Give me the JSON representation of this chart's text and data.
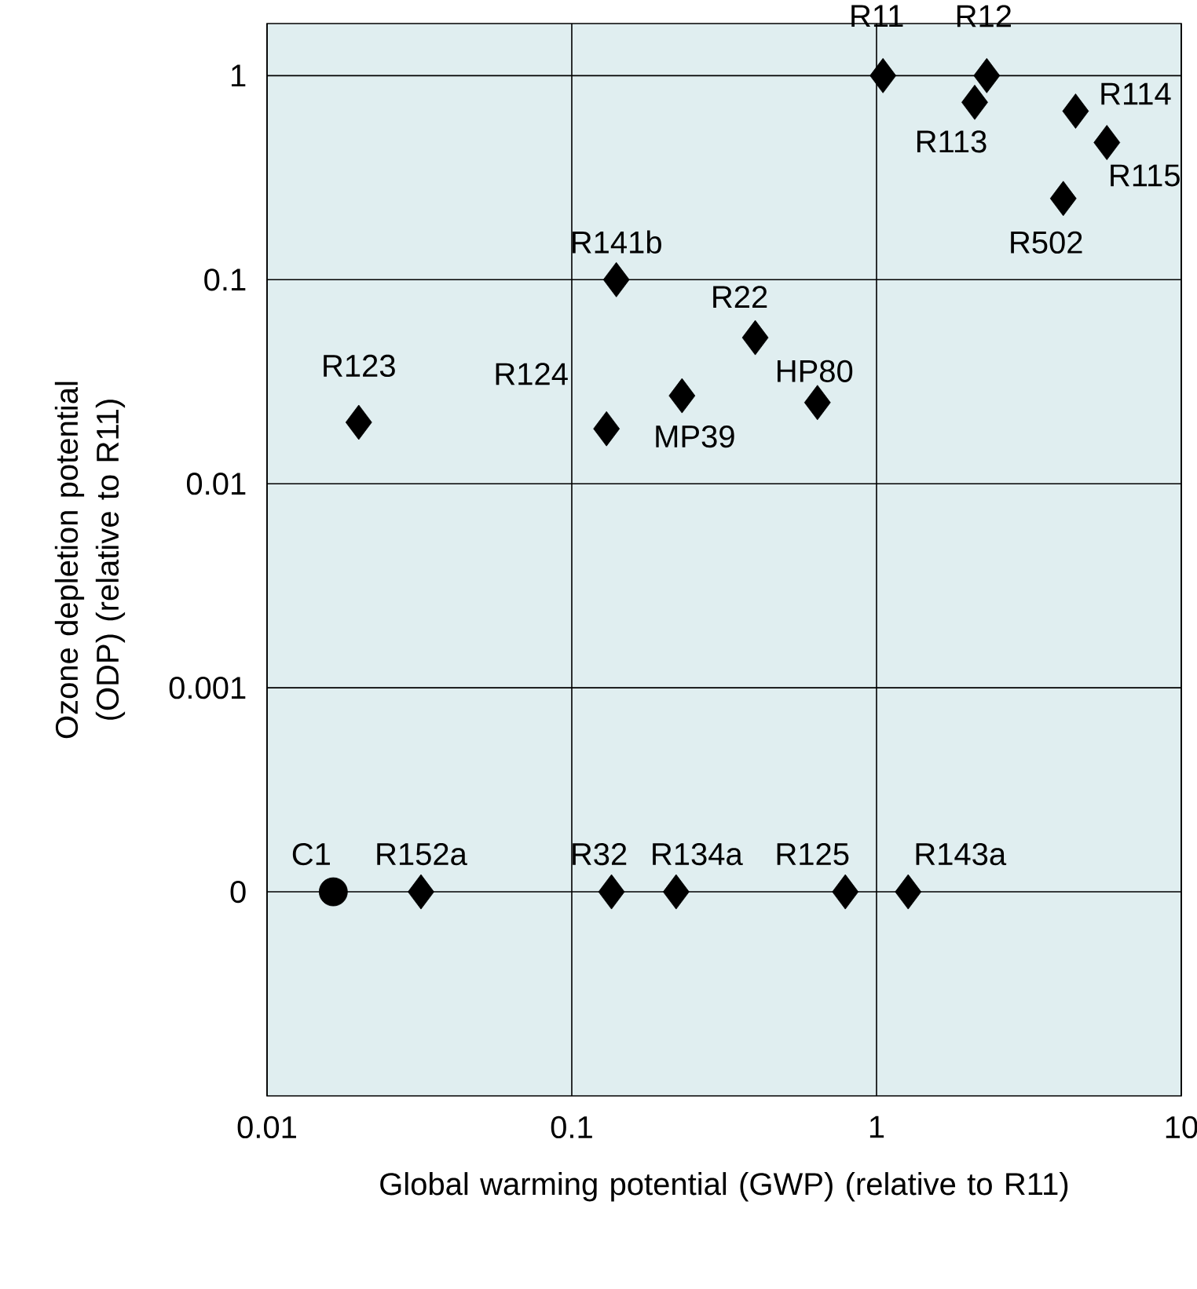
{
  "chart_data": {
    "type": "scatter",
    "xlabel": "Global warming potential (GWP) (relative to R11)",
    "ylabel": "Ozone depletion potential (ODP) (relative to R11)",
    "log": "xy",
    "xlim": [
      0.01,
      10
    ],
    "ylim": [
      1e-05,
      1.8
    ],
    "xticks": [
      0.01,
      0.1,
      1,
      10
    ],
    "yticks": [
      {
        "value": 0.0001,
        "label": "0"
      },
      0.001,
      0.01,
      0.1,
      1
    ],
    "grid": true,
    "series": [
      {
        "marker": "circle",
        "color": "#000000",
        "x": [
          0.0165
        ],
        "values": [
          0.0001
        ]
      },
      {
        "marker": "diamond",
        "color": "#000000",
        "x": [
          0.032,
          0.135,
          0.22,
          0.79,
          1.27,
          0.02,
          0.13,
          0.23,
          0.14,
          0.4,
          0.64,
          1.05,
          2.3,
          2.1,
          4.5,
          5.7,
          4.1
        ],
        "values": [
          0.0001,
          0.0001,
          0.0001,
          0.0001,
          0.0001,
          0.02,
          0.0186,
          0.027,
          0.1,
          0.052,
          0.025,
          1,
          1,
          0.74,
          0.67,
          0.47,
          0.25
        ]
      }
    ],
    "annotations": [
      {
        "text": "C1",
        "x": 0.0165,
        "y": 0.0001
      },
      {
        "text": "R152a",
        "x": 0.032,
        "y": 0.0001
      },
      {
        "text": "R32",
        "x": 0.135,
        "y": 0.0001
      },
      {
        "text": "R134a",
        "x": 0.22,
        "y": 0.0001
      },
      {
        "text": "R125",
        "x": 0.79,
        "y": 0.0001
      },
      {
        "text": "R143a",
        "x": 1.27,
        "y": 0.0001
      },
      {
        "text": "R123",
        "x": 0.02,
        "y": 0.02
      },
      {
        "text": "R124",
        "x": 0.13,
        "y": 0.0186
      },
      {
        "text": "MP39",
        "x": 0.23,
        "y": 0.027
      },
      {
        "text": "R141b",
        "x": 0.14,
        "y": 0.1
      },
      {
        "text": "R22",
        "x": 0.4,
        "y": 0.052
      },
      {
        "text": "HP80",
        "x": 0.64,
        "y": 0.025
      },
      {
        "text": "R11",
        "x": 1.05,
        "y": 1
      },
      {
        "text": "R12",
        "x": 2.3,
        "y": 1
      },
      {
        "text": "R113",
        "x": 2.1,
        "y": 0.74
      },
      {
        "text": "R114",
        "x": 4.5,
        "y": 0.67
      },
      {
        "text": "R115",
        "x": 5.7,
        "y": 0.47
      },
      {
        "text": "R502",
        "x": 4.1,
        "y": 0.25
      }
    ]
  }
}
